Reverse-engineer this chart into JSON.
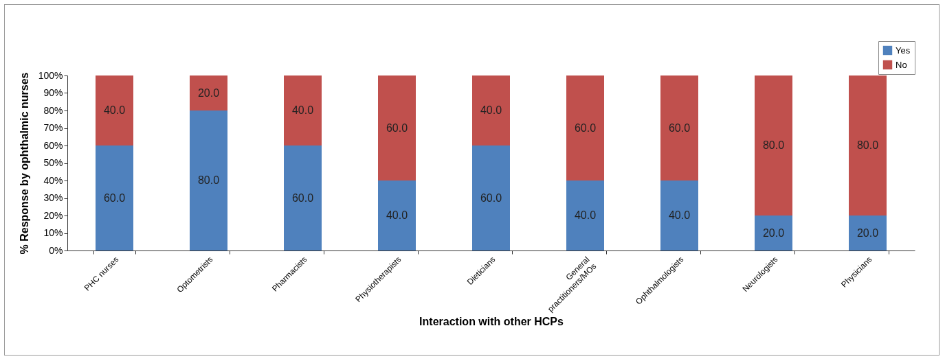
{
  "chart_data": {
    "type": "bar",
    "stacked": true,
    "xlabel": "Interaction with other HCPs",
    "ylabel": "% Response by ophthalmic nurses",
    "categories": [
      "PHC nurses",
      "Optometrists",
      "Pharmacists",
      "Physiotherapists",
      "Dieticians",
      "General practitioners/MOs",
      "Ophthalmologists",
      "Neurologists",
      "Physicians"
    ],
    "series": [
      {
        "name": "Yes",
        "color": "#4f81bd",
        "values": [
          60,
          80,
          60,
          40,
          60,
          40,
          40,
          20,
          20
        ],
        "value_labels": [
          "60.0",
          "80.0",
          "60.0",
          "40.0",
          "60.0",
          "40.0",
          "40.0",
          "20.0",
          "20.0"
        ]
      },
      {
        "name": "No",
        "color": "#c0504d",
        "values": [
          40,
          20,
          40,
          60,
          40,
          60,
          60,
          80,
          80
        ],
        "value_labels": [
          "40.0",
          "20.0",
          "40.0",
          "60.0",
          "40.0",
          "60.0",
          "60.0",
          "80.0",
          "80.0"
        ]
      }
    ],
    "ylim": [
      0,
      100
    ],
    "yticks": [
      {
        "value": 0,
        "label": "0%"
      },
      {
        "value": 10,
        "label": "10%"
      },
      {
        "value": 20,
        "label": "20%"
      },
      {
        "value": 30,
        "label": "30%"
      },
      {
        "value": 40,
        "label": "40%"
      },
      {
        "value": 50,
        "label": "50%"
      },
      {
        "value": 60,
        "label": "60%"
      },
      {
        "value": 70,
        "label": "70%"
      },
      {
        "value": 80,
        "label": "80%"
      },
      {
        "value": 90,
        "label": "90%"
      },
      {
        "value": 100,
        "label": "100%"
      }
    ],
    "grid": false,
    "legend": "top right"
  }
}
